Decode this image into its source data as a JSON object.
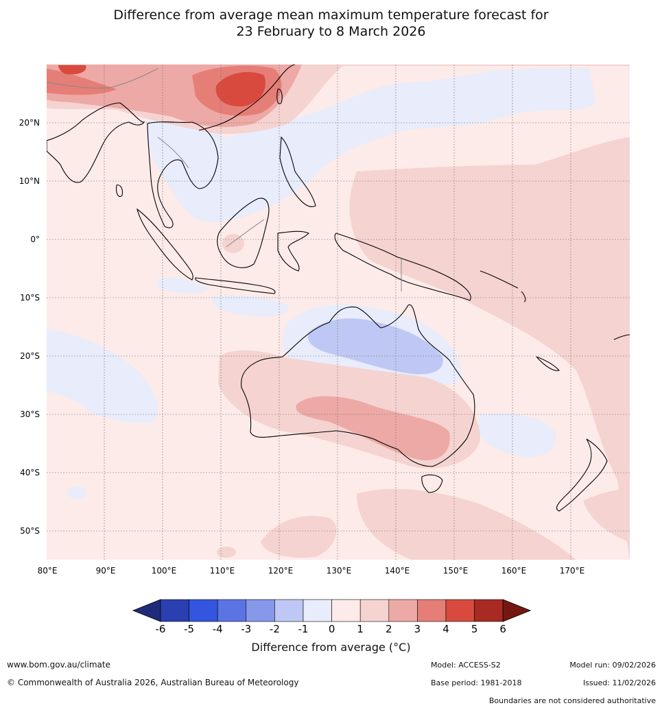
{
  "title": {
    "line1": "Difference from average mean maximum temperature forecast for",
    "line2": "23 February to 8 March 2026"
  },
  "map": {
    "lon_labels": [
      "80°E",
      "90°E",
      "100°E",
      "110°E",
      "120°E",
      "130°E",
      "140°E",
      "150°E",
      "160°E",
      "170°E"
    ],
    "lat_labels": [
      "20°N",
      "10°N",
      "0°",
      "10°S",
      "20°S",
      "30°S",
      "40°S",
      "50°S"
    ]
  },
  "colorbar": {
    "ticks": [
      "-6",
      "-5",
      "-4",
      "-3",
      "-2",
      "-1",
      "0",
      "1",
      "2",
      "3",
      "4",
      "5",
      "6"
    ],
    "colors": [
      "#1f2b7a",
      "#2a3fb0",
      "#3355e0",
      "#5b74e4",
      "#8798ea",
      "#bfc8f4",
      "#e8ecfb",
      "#fcebe9",
      "#f5d3d1",
      "#eda9a5",
      "#e57e76",
      "#d94a3e",
      "#a82a22",
      "#751812"
    ],
    "title": "Difference from average (°C)"
  },
  "footer": {
    "url": "www.bom.gov.au/climate",
    "copyright": "© Commonwealth of Australia 2026, Australian Bureau of Meteorology",
    "model": "Model: ACCESS-S2",
    "base_period": "Base period: 1981-2018",
    "model_run": "Model run: 09/02/2026",
    "issued": "Issued: 11/02/2026",
    "disclaimer": "Boundaries are not considered authoritative"
  }
}
